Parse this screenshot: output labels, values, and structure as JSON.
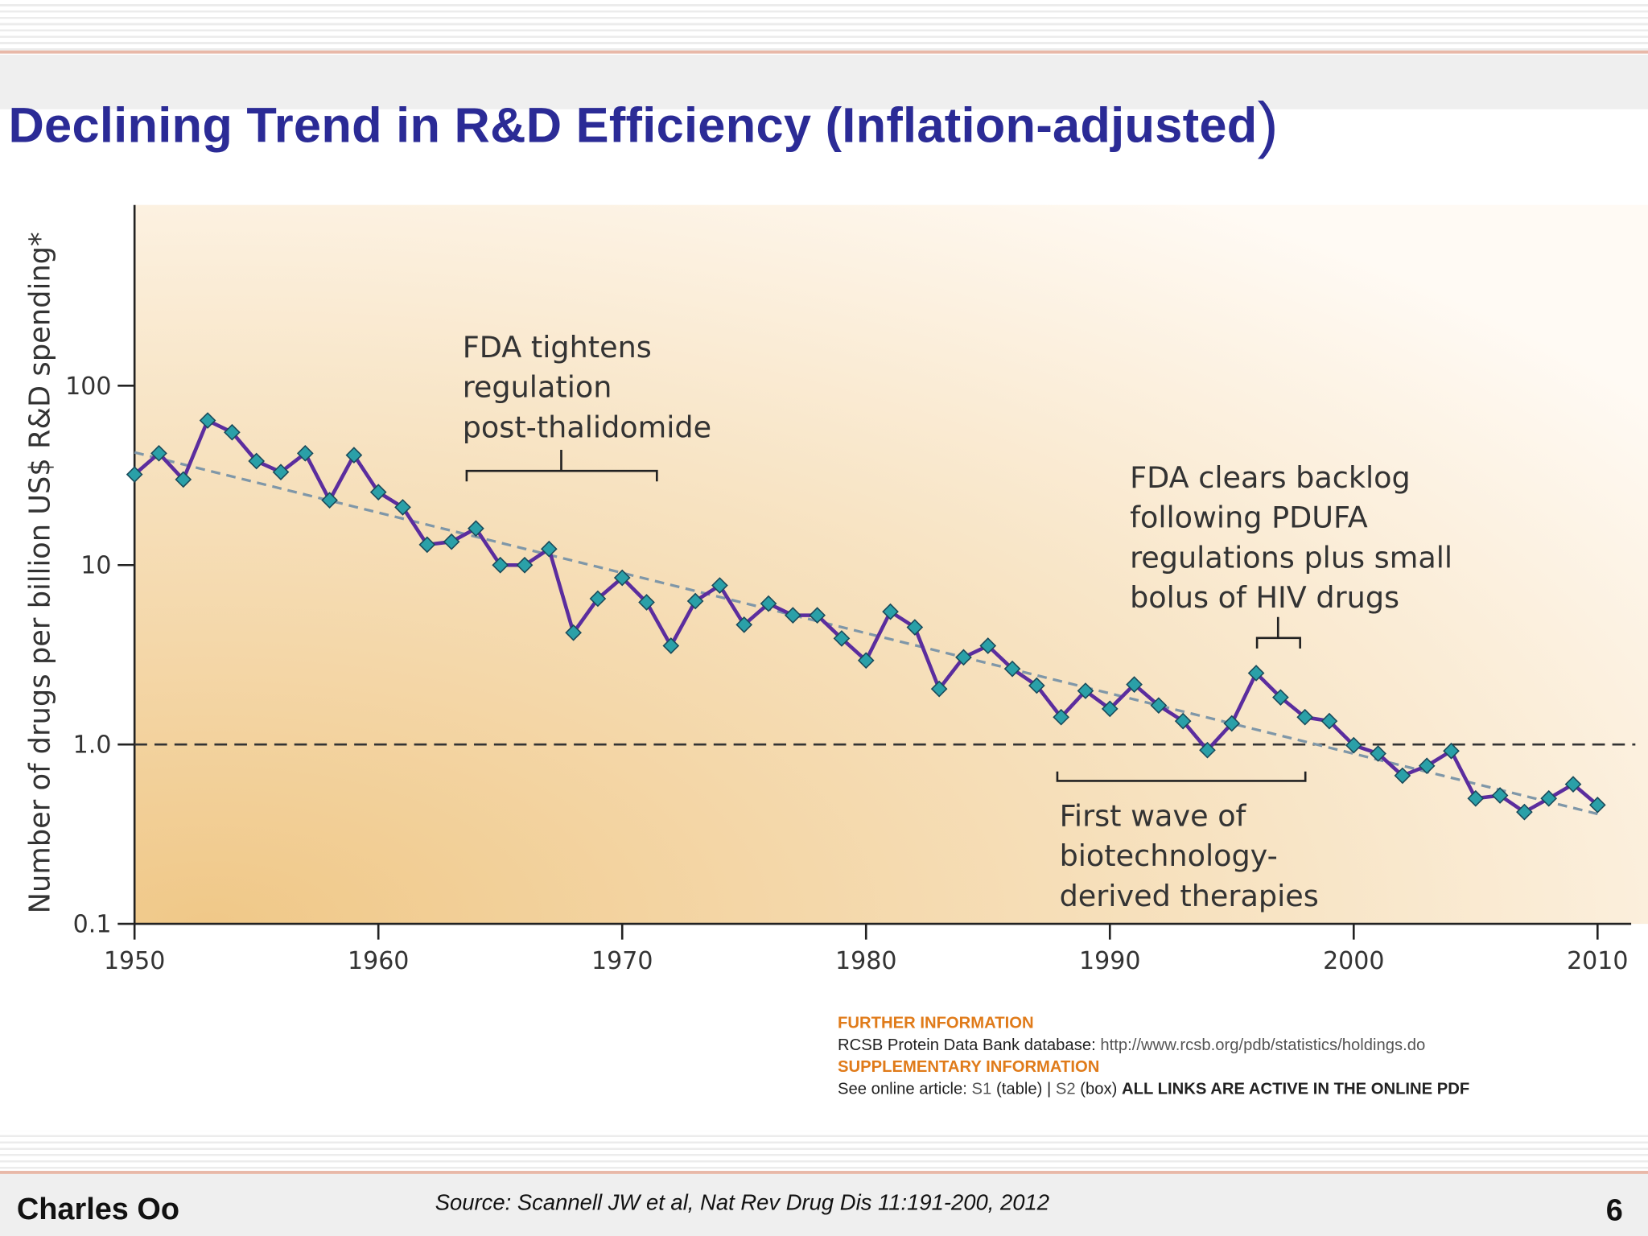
{
  "slide": {
    "title": "Declining Trend in R&D Efficiency (Inflation-adjusted",
    "title_close_paren": ")",
    "author": "Charles Oo",
    "source": "Source: Scannell JW et al, Nat Rev Drug Dis 11:191-200, 2012",
    "page_number": "6"
  },
  "info": {
    "further_heading": "FURTHER INFORMATION",
    "further_text": "RCSB Protein Data Bank database: ",
    "further_link": "http://www.rcsb.org/pdb/statistics/holdings.do",
    "supp_heading": "SUPPLEMENTARY INFORMATION",
    "supp_text": "See online article: ",
    "s1": "S1",
    "s1_suffix": " (table) | ",
    "s2": "S2",
    "s2_suffix": " (box) ",
    "active_note": "ALL LINKS ARE ACTIVE IN THE ONLINE PDF"
  },
  "colors": {
    "title": "#2b2b96",
    "series": "#5b2d9e",
    "marker": "#2aa0a8",
    "trend": "#7f97a8",
    "heading": "#e07b1a"
  },
  "chart_data": {
    "type": "line",
    "ylabel": "Number of drugs per billion US$ R&D spending*",
    "xlim": [
      1950,
      2011.5
    ],
    "ylim": [
      0.1,
      1000
    ],
    "yscale": "log",
    "xticks": [
      "1950",
      "1960",
      "1970",
      "1980",
      "1990",
      "2000",
      "2010"
    ],
    "yticks": [
      "0.1",
      "1.0",
      "10",
      "100"
    ],
    "reference_line": 1.0,
    "x": [
      1950,
      1951,
      1952,
      1953,
      1954,
      1955,
      1956,
      1957,
      1958,
      1959,
      1960,
      1961,
      1962,
      1963,
      1964,
      1965,
      1966,
      1967,
      1968,
      1969,
      1970,
      1971,
      1972,
      1973,
      1974,
      1975,
      1976,
      1977,
      1978,
      1979,
      1980,
      1981,
      1982,
      1983,
      1984,
      1985,
      1986,
      1987,
      1988,
      1989,
      1990,
      1991,
      1992,
      1993,
      1994,
      1995,
      1996,
      1997,
      1998,
      1999,
      2000,
      2001,
      2002,
      2003,
      2004,
      2005,
      2006,
      2007,
      2008,
      2009,
      2010
    ],
    "values": [
      32,
      42,
      30,
      64,
      55,
      38,
      33,
      42,
      23,
      41,
      25.5,
      21,
      13,
      13.5,
      16,
      10,
      10,
      12.3,
      4.2,
      6.5,
      8.5,
      6.2,
      3.55,
      6.3,
      7.7,
      4.65,
      6.1,
      5.25,
      5.25,
      3.9,
      2.94,
      5.5,
      4.5,
      2.04,
      3.06,
      3.55,
      2.64,
      2.13,
      1.42,
      1.99,
      1.58,
      2.16,
      1.65,
      1.35,
      0.93,
      1.31,
      2.5,
      1.83,
      1.42,
      1.35,
      0.99,
      0.89,
      0.67,
      0.76,
      0.92,
      0.5,
      0.52,
      0.42,
      0.5,
      0.6,
      0.46
    ],
    "trend": {
      "x": [
        1950,
        2010
      ],
      "values": [
        42.5,
        0.41
      ]
    },
    "annotations": [
      {
        "lines": [
          "FDA tightens",
          "regulation",
          "post-thalidomide"
        ]
      },
      {
        "lines": [
          "FDA clears backlog",
          "following PDUFA",
          "regulations plus small",
          "bolus of HIV drugs"
        ]
      },
      {
        "lines": [
          "First wave of",
          "biotechnology-",
          "derived therapies"
        ]
      }
    ]
  }
}
